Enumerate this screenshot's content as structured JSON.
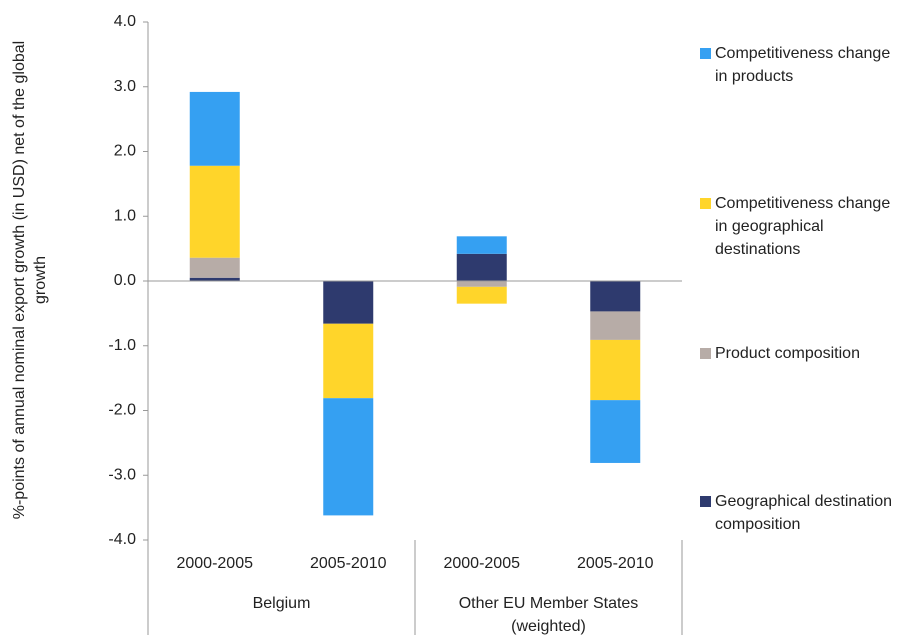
{
  "chart_data": {
    "type": "stacked-bar",
    "y_label": "%-points of annual nominal export growth (in USD) net of the global growth",
    "categories": [
      "2000-2005",
      "2005-2010",
      "2000-2005",
      "2005-2010"
    ],
    "groups": [
      {
        "name": "Belgium",
        "span": 2
      },
      {
        "name": "Other EU Member States (weighted)",
        "span": 2
      }
    ],
    "series": [
      {
        "name": "Geographical destination composition",
        "color": "#2e3a6e",
        "values": [
          0.05,
          -0.66,
          0.42,
          -0.47
        ]
      },
      {
        "name": "Product composition",
        "color": "#b7aca7",
        "values": [
          0.31,
          0,
          -0.09,
          -0.44
        ]
      },
      {
        "name": "Competitiveness change in geographical destinations",
        "color": "#ffd52a",
        "values": [
          1.42,
          -1.15,
          -0.26,
          -0.93
        ]
      },
      {
        "name": "Competitiveness change in products",
        "color": "#35a0f2",
        "values": [
          1.14,
          -1.81,
          0.27,
          -0.97
        ]
      }
    ],
    "ylim": [
      -4,
      4
    ],
    "yticks": [
      {
        "value": -4,
        "label": "-4.0"
      },
      {
        "value": -3,
        "label": "-3.0"
      },
      {
        "value": -2,
        "label": "-2.0"
      },
      {
        "value": -1,
        "label": "-1.0"
      },
      {
        "value": 0,
        "label": "0.0"
      },
      {
        "value": 1,
        "label": "1.0"
      },
      {
        "value": 2,
        "label": "2.0"
      },
      {
        "value": 3,
        "label": "3.0"
      },
      {
        "value": 4,
        "label": "4.0"
      }
    ],
    "legend": "right"
  }
}
